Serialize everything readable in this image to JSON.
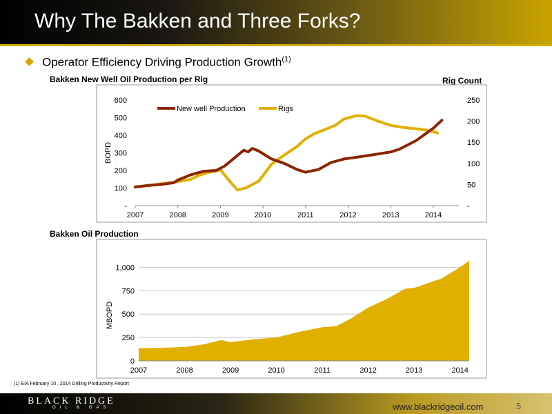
{
  "slide": {
    "title": "Why The Bakken and Three Forks?",
    "bullet": "Operator Efficiency Driving Production Growth",
    "bullet_sup": "(1)",
    "footnote": "(1) EIA February 10 , 2014 Drilling Productivity Report",
    "logo_main": "BLACK RIDGE",
    "logo_sub": "OIL & GAS",
    "website": "www.blackridgeoil.com",
    "page_number": "5"
  },
  "chart_data": [
    {
      "type": "line",
      "title": "Bakken New Well Oil Production per Rig",
      "secondary_axis_title": "Rig Count",
      "ylabel": "BOPD",
      "x_ticks": [
        "2007",
        "2008",
        "2009",
        "2010",
        "2011",
        "2012",
        "2013",
        "2014"
      ],
      "y_ticks": [
        "-",
        "100",
        "200",
        "300",
        "400",
        "500",
        "600"
      ],
      "ylim": [
        0,
        600
      ],
      "y2_ticks": [
        "-",
        "50",
        "100",
        "150",
        "200",
        "250"
      ],
      "y2lim": [
        0,
        250
      ],
      "legend": "top-left",
      "series": [
        {
          "name": "New well Production",
          "axis": "primary",
          "color": "#8b2500",
          "x": [
            2007.0,
            2007.3,
            2007.6,
            2007.9,
            2008.0,
            2008.3,
            2008.6,
            2008.9,
            2009.1,
            2009.4,
            2009.55,
            2009.65,
            2009.75,
            2009.9,
            2010.2,
            2010.5,
            2010.8,
            2011.0,
            2011.3,
            2011.6,
            2011.9,
            2012.2,
            2012.6,
            2013.0,
            2013.2,
            2013.6,
            2014.0,
            2014.2
          ],
          "values": [
            105,
            115,
            120,
            130,
            145,
            175,
            195,
            200,
            225,
            285,
            315,
            305,
            325,
            310,
            265,
            240,
            205,
            190,
            205,
            245,
            265,
            275,
            290,
            305,
            320,
            370,
            440,
            485
          ]
        },
        {
          "name": "Rigs",
          "axis": "secondary",
          "color": "#e0b000",
          "x": [
            2007.0,
            2007.3,
            2007.6,
            2007.9,
            2008.0,
            2008.3,
            2008.5,
            2008.7,
            2008.9,
            2009.0,
            2009.2,
            2009.4,
            2009.6,
            2009.9,
            2010.2,
            2010.5,
            2010.8,
            2011.0,
            2011.2,
            2011.4,
            2011.7,
            2011.9,
            2012.2,
            2012.4,
            2012.7,
            2013.0,
            2013.3,
            2013.6,
            2013.9,
            2014.0,
            2014.1
          ],
          "values": [
            45,
            47,
            52,
            55,
            57,
            62,
            72,
            78,
            82,
            85,
            60,
            37,
            42,
            58,
            98,
            120,
            140,
            158,
            170,
            178,
            190,
            205,
            213,
            212,
            200,
            190,
            185,
            182,
            178,
            175,
            172
          ]
        }
      ]
    },
    {
      "type": "area",
      "title": "Bakken Oil Production",
      "ylabel": "MBOPD",
      "x_ticks": [
        "2007",
        "2008",
        "2009",
        "2010",
        "2011",
        "2012",
        "2013",
        "2014"
      ],
      "y_ticks": [
        "0",
        "250",
        "500",
        "750",
        "1,000"
      ],
      "ylim": [
        0,
        1150
      ],
      "grid": true,
      "series": [
        {
          "name": "",
          "color": "#e0b000",
          "x": [
            2007.0,
            2007.5,
            2008.0,
            2008.4,
            2008.8,
            2009.0,
            2009.5,
            2010.0,
            2010.5,
            2011.0,
            2011.3,
            2011.6,
            2012.0,
            2012.4,
            2012.8,
            2013.0,
            2013.3,
            2013.6,
            2014.0,
            2014.2
          ],
          "values": [
            135,
            140,
            148,
            175,
            222,
            200,
            230,
            250,
            310,
            360,
            370,
            445,
            570,
            660,
            770,
            780,
            830,
            880,
            1000,
            1070
          ]
        }
      ]
    }
  ]
}
